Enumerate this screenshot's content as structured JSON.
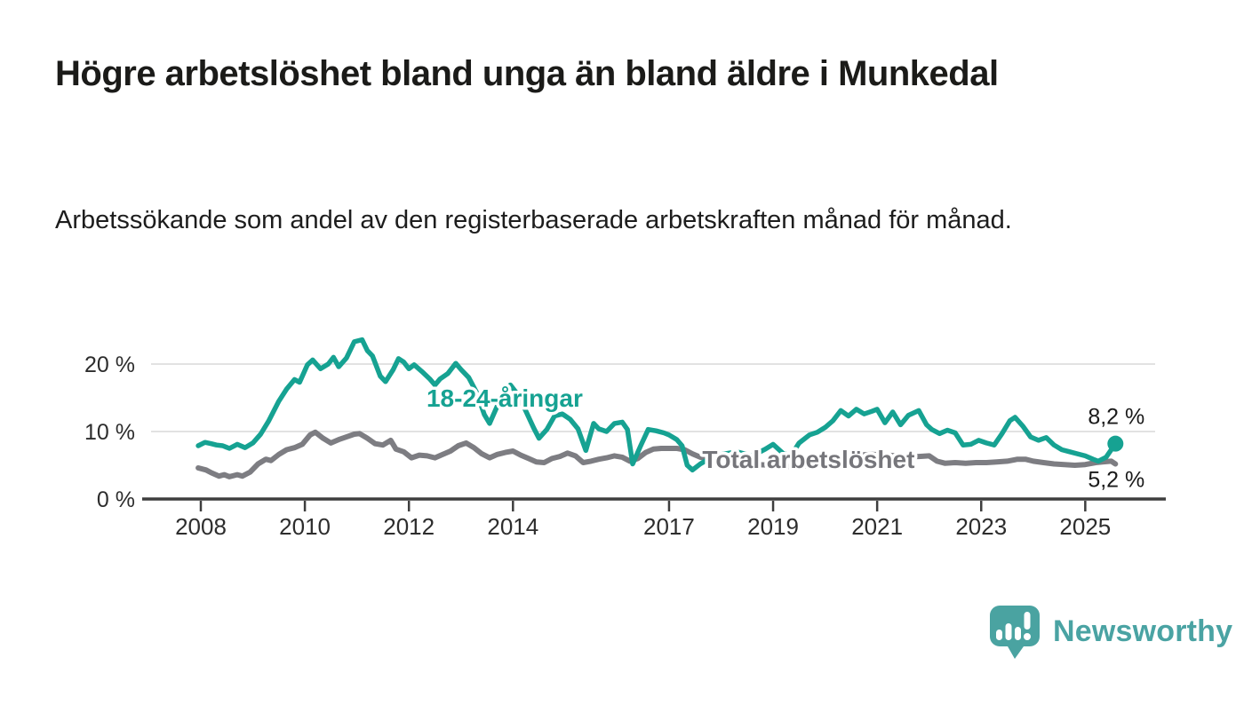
{
  "header": {
    "title": "Högre arbetslöshet bland unga än bland äldre i Munkedal",
    "subtitle": "Arbetssökande som andel av den registerbaserade arbetskraften månad för månad."
  },
  "chart_data": {
    "type": "line",
    "title": "Högre arbetslöshet bland unga än bland äldre i Munkedal",
    "subtitle": "Arbetssökande som andel av den registerbaserade arbetskraften månad för månad.",
    "grid": "horizontal-only",
    "legend_position": "inline-labels",
    "x_axis": {
      "unit": "year",
      "range": [
        2007.8,
        2026.4
      ],
      "ticks": [
        2008,
        2010,
        2012,
        2014,
        2017,
        2019,
        2021,
        2023,
        2025
      ]
    },
    "y_axis": {
      "unit": "%",
      "range": [
        0,
        24.6
      ],
      "ticks": [
        0,
        10,
        20
      ],
      "tick_labels": [
        "0 %",
        "10 %",
        "20 %"
      ],
      "gridlines": [
        10,
        20
      ]
    },
    "colors": {
      "youth": "#16a292",
      "total": "#7d7d82",
      "gridline": "#d9d9d9",
      "axis": "#3e3e3e",
      "text": "#2d2d2d"
    },
    "series": [
      {
        "name": "Total arbetslöshet",
        "color": "#7d7d82",
        "label": {
          "text": "Total arbetslöshet",
          "at": [
            2019.68,
            4.6
          ]
        },
        "end_label": {
          "text": "5,2 %",
          "position": "below"
        },
        "end_value": 5.2,
        "end_dot": false,
        "points": [
          [
            2007.95,
            4.6
          ],
          [
            2008.1,
            4.3
          ],
          [
            2008.2,
            3.9
          ],
          [
            2008.35,
            3.4
          ],
          [
            2008.45,
            3.6
          ],
          [
            2008.55,
            3.3
          ],
          [
            2008.7,
            3.6
          ],
          [
            2008.8,
            3.4
          ],
          [
            2008.95,
            4.0
          ],
          [
            2009.1,
            5.2
          ],
          [
            2009.25,
            5.9
          ],
          [
            2009.35,
            5.7
          ],
          [
            2009.5,
            6.6
          ],
          [
            2009.65,
            7.3
          ],
          [
            2009.8,
            7.6
          ],
          [
            2009.95,
            8.1
          ],
          [
            2010.1,
            9.5
          ],
          [
            2010.2,
            9.9
          ],
          [
            2010.35,
            9.0
          ],
          [
            2010.5,
            8.3
          ],
          [
            2010.65,
            8.8
          ],
          [
            2010.8,
            9.2
          ],
          [
            2010.95,
            9.6
          ],
          [
            2011.05,
            9.7
          ],
          [
            2011.2,
            9.0
          ],
          [
            2011.35,
            8.2
          ],
          [
            2011.5,
            8.0
          ],
          [
            2011.65,
            8.7
          ],
          [
            2011.75,
            7.4
          ],
          [
            2011.9,
            7.0
          ],
          [
            2012.05,
            6.1
          ],
          [
            2012.2,
            6.5
          ],
          [
            2012.35,
            6.4
          ],
          [
            2012.5,
            6.1
          ],
          [
            2012.65,
            6.6
          ],
          [
            2012.8,
            7.1
          ],
          [
            2012.95,
            7.9
          ],
          [
            2013.1,
            8.3
          ],
          [
            2013.25,
            7.6
          ],
          [
            2013.4,
            6.7
          ],
          [
            2013.55,
            6.1
          ],
          [
            2013.7,
            6.6
          ],
          [
            2013.85,
            6.9
          ],
          [
            2014.0,
            7.1
          ],
          [
            2014.15,
            6.5
          ],
          [
            2014.3,
            6.0
          ],
          [
            2014.45,
            5.5
          ],
          [
            2014.6,
            5.4
          ],
          [
            2014.75,
            6.0
          ],
          [
            2014.9,
            6.3
          ],
          [
            2015.05,
            6.8
          ],
          [
            2015.2,
            6.4
          ],
          [
            2015.35,
            5.4
          ],
          [
            2015.5,
            5.6
          ],
          [
            2015.65,
            5.9
          ],
          [
            2015.8,
            6.1
          ],
          [
            2015.95,
            6.4
          ],
          [
            2016.1,
            6.2
          ],
          [
            2016.25,
            5.6
          ],
          [
            2016.4,
            6.0
          ],
          [
            2016.55,
            6.9
          ],
          [
            2016.7,
            7.4
          ],
          [
            2016.85,
            7.5
          ],
          [
            2017.0,
            7.5
          ],
          [
            2017.15,
            7.5
          ],
          [
            2017.3,
            7.3
          ],
          [
            2017.45,
            6.7
          ],
          [
            2017.6,
            6.2
          ],
          [
            2017.8,
            5.9
          ],
          [
            2018.0,
            5.7
          ],
          [
            2018.35,
            5.4
          ],
          [
            2018.7,
            5.1
          ],
          [
            2019.0,
            5.0
          ],
          [
            2019.35,
            4.8
          ],
          [
            2019.7,
            4.9
          ],
          [
            2020.0,
            5.4
          ],
          [
            2020.3,
            6.2
          ],
          [
            2020.6,
            6.5
          ],
          [
            2020.9,
            6.6
          ],
          [
            2021.2,
            6.5
          ],
          [
            2021.5,
            6.3
          ],
          [
            2021.8,
            6.3
          ],
          [
            2022.0,
            6.4
          ],
          [
            2022.15,
            5.6
          ],
          [
            2022.3,
            5.3
          ],
          [
            2022.5,
            5.4
          ],
          [
            2022.7,
            5.3
          ],
          [
            2022.9,
            5.4
          ],
          [
            2023.1,
            5.4
          ],
          [
            2023.3,
            5.5
          ],
          [
            2023.5,
            5.6
          ],
          [
            2023.7,
            5.9
          ],
          [
            2023.85,
            5.9
          ],
          [
            2024.0,
            5.6
          ],
          [
            2024.2,
            5.4
          ],
          [
            2024.4,
            5.2
          ],
          [
            2024.6,
            5.1
          ],
          [
            2024.8,
            5.0
          ],
          [
            2025.0,
            5.1
          ],
          [
            2025.2,
            5.4
          ],
          [
            2025.35,
            5.5
          ],
          [
            2025.5,
            5.6
          ],
          [
            2025.58,
            5.2
          ]
        ]
      },
      {
        "name": "18-24-åringar",
        "color": "#16a292",
        "label": {
          "text": "18-24-åringar",
          "at": [
            2013.84,
            13.7
          ]
        },
        "end_label": {
          "text": "8,2 %",
          "position": "above"
        },
        "end_value": 8.2,
        "end_dot": true,
        "points": [
          [
            2007.95,
            7.9
          ],
          [
            2008.08,
            8.4
          ],
          [
            2008.2,
            8.2
          ],
          [
            2008.3,
            8.0
          ],
          [
            2008.42,
            7.9
          ],
          [
            2008.55,
            7.5
          ],
          [
            2008.7,
            8.1
          ],
          [
            2008.85,
            7.6
          ],
          [
            2009.0,
            8.3
          ],
          [
            2009.15,
            9.6
          ],
          [
            2009.3,
            11.5
          ],
          [
            2009.5,
            14.5
          ],
          [
            2009.65,
            16.3
          ],
          [
            2009.8,
            17.7
          ],
          [
            2009.9,
            17.3
          ],
          [
            2010.05,
            19.9
          ],
          [
            2010.15,
            20.6
          ],
          [
            2010.3,
            19.3
          ],
          [
            2010.45,
            20.0
          ],
          [
            2010.55,
            21.0
          ],
          [
            2010.65,
            19.6
          ],
          [
            2010.8,
            20.9
          ],
          [
            2010.95,
            23.3
          ],
          [
            2011.1,
            23.6
          ],
          [
            2011.2,
            22.0
          ],
          [
            2011.3,
            21.2
          ],
          [
            2011.45,
            18.2
          ],
          [
            2011.55,
            17.4
          ],
          [
            2011.7,
            19.2
          ],
          [
            2011.8,
            20.8
          ],
          [
            2011.9,
            20.3
          ],
          [
            2012.0,
            19.3
          ],
          [
            2012.1,
            19.9
          ],
          [
            2012.25,
            18.9
          ],
          [
            2012.4,
            17.8
          ],
          [
            2012.5,
            16.9
          ],
          [
            2012.6,
            17.8
          ],
          [
            2012.75,
            18.6
          ],
          [
            2012.9,
            20.1
          ],
          [
            2013.0,
            19.2
          ],
          [
            2013.15,
            18.0
          ],
          [
            2013.3,
            15.8
          ],
          [
            2013.45,
            12.5
          ],
          [
            2013.55,
            11.2
          ],
          [
            2013.7,
            13.8
          ],
          [
            2013.85,
            16.2
          ],
          [
            2013.95,
            16.9
          ],
          [
            2014.1,
            15.4
          ],
          [
            2014.25,
            13.0
          ],
          [
            2014.4,
            10.5
          ],
          [
            2014.5,
            9.0
          ],
          [
            2014.65,
            10.3
          ],
          [
            2014.8,
            12.3
          ],
          [
            2014.95,
            12.6
          ],
          [
            2015.1,
            11.8
          ],
          [
            2015.25,
            10.4
          ],
          [
            2015.4,
            7.2
          ],
          [
            2015.55,
            11.2
          ],
          [
            2015.65,
            10.4
          ],
          [
            2015.8,
            10.0
          ],
          [
            2015.95,
            11.2
          ],
          [
            2016.1,
            11.4
          ],
          [
            2016.2,
            10.3
          ],
          [
            2016.3,
            5.2
          ],
          [
            2016.45,
            7.8
          ],
          [
            2016.6,
            10.3
          ],
          [
            2016.75,
            10.1
          ],
          [
            2016.9,
            9.8
          ],
          [
            2017.0,
            9.5
          ],
          [
            2017.15,
            8.8
          ],
          [
            2017.25,
            7.9
          ],
          [
            2017.35,
            5.0
          ],
          [
            2017.45,
            4.3
          ],
          [
            2017.6,
            5.2
          ],
          [
            2017.8,
            6.1
          ],
          [
            2018.0,
            6.6
          ],
          [
            2018.3,
            7.0
          ],
          [
            2018.6,
            6.4
          ],
          [
            2018.85,
            7.4
          ],
          [
            2019.0,
            8.1
          ],
          [
            2019.2,
            6.7
          ],
          [
            2019.35,
            6.5
          ],
          [
            2019.5,
            8.3
          ],
          [
            2019.7,
            9.5
          ],
          [
            2019.85,
            9.9
          ],
          [
            2020.0,
            10.6
          ],
          [
            2020.15,
            11.6
          ],
          [
            2020.3,
            13.1
          ],
          [
            2020.45,
            12.3
          ],
          [
            2020.6,
            13.3
          ],
          [
            2020.75,
            12.6
          ],
          [
            2020.9,
            13.0
          ],
          [
            2021.0,
            13.3
          ],
          [
            2021.15,
            11.3
          ],
          [
            2021.3,
            12.9
          ],
          [
            2021.45,
            11.0
          ],
          [
            2021.6,
            12.4
          ],
          [
            2021.8,
            13.1
          ],
          [
            2021.95,
            11.0
          ],
          [
            2022.05,
            10.3
          ],
          [
            2022.2,
            9.7
          ],
          [
            2022.35,
            10.2
          ],
          [
            2022.5,
            9.8
          ],
          [
            2022.65,
            8.0
          ],
          [
            2022.8,
            8.1
          ],
          [
            2022.95,
            8.7
          ],
          [
            2023.1,
            8.3
          ],
          [
            2023.25,
            8.0
          ],
          [
            2023.4,
            9.7
          ],
          [
            2023.55,
            11.6
          ],
          [
            2023.65,
            12.1
          ],
          [
            2023.8,
            10.8
          ],
          [
            2023.95,
            9.2
          ],
          [
            2024.1,
            8.7
          ],
          [
            2024.25,
            9.1
          ],
          [
            2024.4,
            8.0
          ],
          [
            2024.55,
            7.3
          ],
          [
            2024.7,
            7.0
          ],
          [
            2024.85,
            6.7
          ],
          [
            2025.0,
            6.4
          ],
          [
            2025.15,
            5.9
          ],
          [
            2025.25,
            5.6
          ],
          [
            2025.4,
            6.2
          ],
          [
            2025.58,
            8.2
          ]
        ]
      }
    ]
  },
  "branding": {
    "logo_text": "Newsworthy"
  }
}
